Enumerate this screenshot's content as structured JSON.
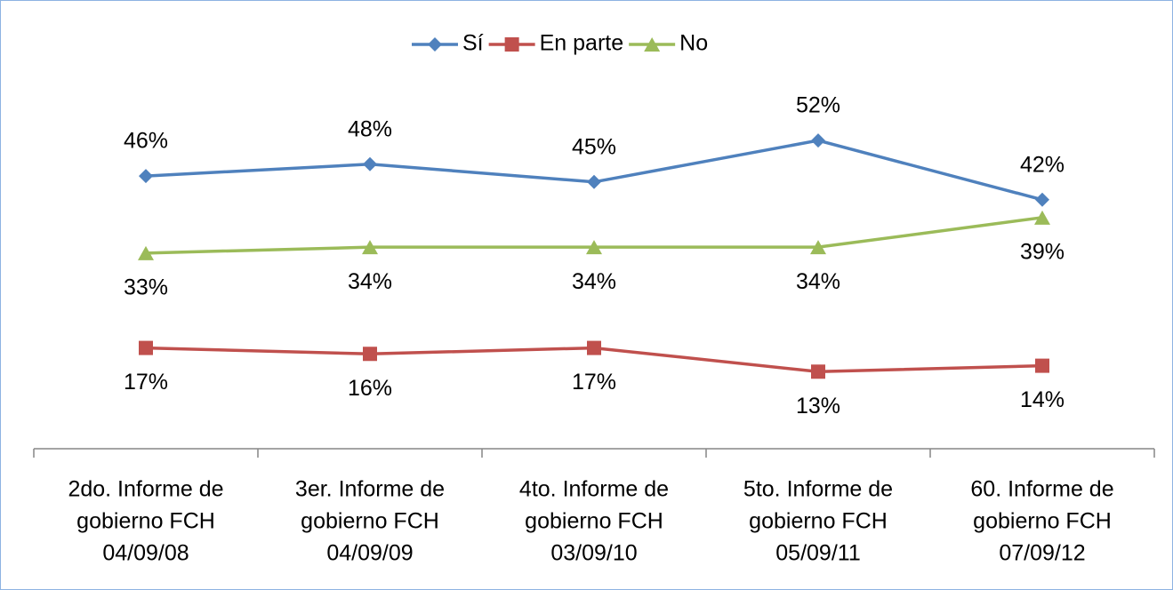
{
  "chart_data": {
    "type": "line",
    "categories": [
      [
        "2do. Informe de",
        "gobierno FCH",
        "04/09/08"
      ],
      [
        "3er. Informe de",
        "gobierno FCH",
        "04/09/09"
      ],
      [
        "4to. Informe de",
        "gobierno FCH",
        "03/09/10"
      ],
      [
        "5to. Informe de",
        "gobierno FCH",
        "05/09/11"
      ],
      [
        "60. Informe de",
        "gobierno FCH",
        "07/09/12"
      ]
    ],
    "series": [
      {
        "name": "Sí",
        "color": "#4f81bd",
        "marker": "diamond",
        "values": [
          46,
          48,
          45,
          52,
          42
        ],
        "value_labels": [
          "46%",
          "48%",
          "45%",
          "52%",
          "42%"
        ],
        "label_position": "above"
      },
      {
        "name": "En parte",
        "color": "#c0504d",
        "marker": "square",
        "values": [
          17,
          16,
          17,
          13,
          14
        ],
        "value_labels": [
          "17%",
          "16%",
          "17%",
          "13%",
          "14%"
        ],
        "label_position": "below"
      },
      {
        "name": "No",
        "color": "#9bbb59",
        "marker": "triangle",
        "values": [
          33,
          34,
          34,
          34,
          39
        ],
        "value_labels": [
          "33%",
          "34%",
          "34%",
          "34%",
          "39%"
        ],
        "label_position": "below"
      }
    ],
    "ylim": [
      0,
      70
    ],
    "legend": "top"
  }
}
